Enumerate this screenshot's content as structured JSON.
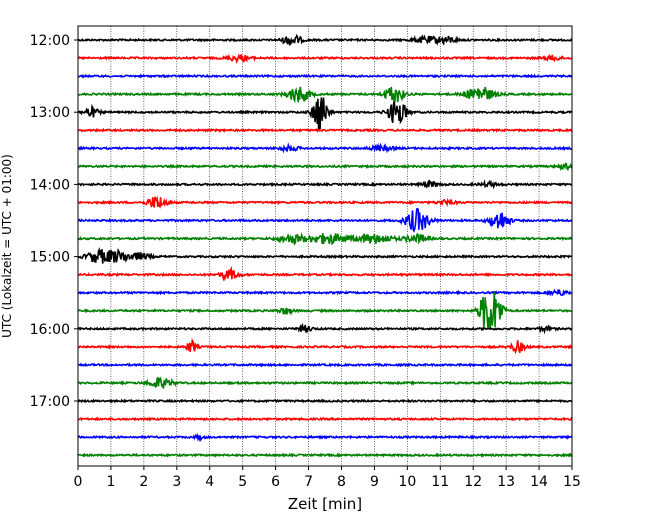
{
  "chart_data": {
    "type": "line",
    "title": "",
    "xlabel": "Zeit  [min]",
    "ylabel": "UTC (Lokalzeit = UTC + 01:00)",
    "xlim": [
      0,
      15
    ],
    "x_ticks": [
      0,
      1,
      2,
      3,
      4,
      5,
      6,
      7,
      8,
      9,
      10,
      11,
      12,
      13,
      14,
      15
    ],
    "y_ticks": [
      "12:00",
      "13:00",
      "14:00",
      "15:00",
      "16:00",
      "17:00"
    ],
    "grid": "vertical dotted",
    "colors": [
      "#000000",
      "#ff0000",
      "#0000ff",
      "#008000"
    ],
    "traces_per_hour": 4,
    "minutes_per_trace": 15,
    "traces": [
      {
        "start": "12:00",
        "color": "#000000",
        "events": [
          {
            "t": 6.5,
            "amp": 0.8,
            "dur": 0.4
          },
          {
            "t": 10.6,
            "amp": 0.5,
            "dur": 0.6
          },
          {
            "t": 11.2,
            "amp": 0.5,
            "dur": 0.4
          }
        ]
      },
      {
        "start": "12:15",
        "color": "#ff0000",
        "events": [
          {
            "t": 4.9,
            "amp": 0.5,
            "dur": 0.5
          },
          {
            "t": 14.4,
            "amp": 0.4,
            "dur": 0.4
          }
        ]
      },
      {
        "start": "12:30",
        "color": "#0000ff",
        "events": []
      },
      {
        "start": "12:45",
        "color": "#008000",
        "events": [
          {
            "t": 6.7,
            "amp": 1.2,
            "dur": 0.5
          },
          {
            "t": 9.6,
            "amp": 1.4,
            "dur": 0.4
          },
          {
            "t": 12.2,
            "amp": 1.2,
            "dur": 0.6
          }
        ]
      },
      {
        "start": "13:00",
        "color": "#000000",
        "events": [
          {
            "t": 0.4,
            "amp": 0.8,
            "dur": 0.3
          },
          {
            "t": 7.35,
            "amp": 3.2,
            "dur": 0.3
          },
          {
            "t": 9.7,
            "amp": 2.0,
            "dur": 0.4
          }
        ]
      },
      {
        "start": "13:15",
        "color": "#ff0000",
        "events": []
      },
      {
        "start": "13:30",
        "color": "#0000ff",
        "events": [
          {
            "t": 6.4,
            "amp": 0.4,
            "dur": 0.4
          },
          {
            "t": 9.2,
            "amp": 0.4,
            "dur": 0.5
          }
        ]
      },
      {
        "start": "13:45",
        "color": "#008000",
        "events": [
          {
            "t": 14.8,
            "amp": 0.4,
            "dur": 0.3
          }
        ]
      },
      {
        "start": "14:00",
        "color": "#000000",
        "events": [
          {
            "t": 10.7,
            "amp": 0.4,
            "dur": 0.4
          },
          {
            "t": 12.5,
            "amp": 0.3,
            "dur": 0.4
          }
        ]
      },
      {
        "start": "14:15",
        "color": "#ff0000",
        "events": [
          {
            "t": 2.4,
            "amp": 1.0,
            "dur": 0.4
          },
          {
            "t": 11.2,
            "amp": 0.3,
            "dur": 0.4
          }
        ]
      },
      {
        "start": "14:30",
        "color": "#0000ff",
        "events": [
          {
            "t": 10.3,
            "amp": 1.8,
            "dur": 0.5
          },
          {
            "t": 12.8,
            "amp": 1.5,
            "dur": 0.4
          }
        ]
      },
      {
        "start": "14:45",
        "color": "#008000",
        "events": [
          {
            "t": 6.5,
            "amp": 0.7,
            "dur": 0.6
          },
          {
            "t": 7.6,
            "amp": 0.8,
            "dur": 0.8
          },
          {
            "t": 9.0,
            "amp": 0.7,
            "dur": 0.8
          },
          {
            "t": 10.3,
            "amp": 0.6,
            "dur": 0.5
          }
        ]
      },
      {
        "start": "15:00",
        "color": "#000000",
        "events": [
          {
            "t": 0.6,
            "amp": 0.9,
            "dur": 0.5
          },
          {
            "t": 1.2,
            "amp": 0.9,
            "dur": 0.6
          },
          {
            "t": 1.9,
            "amp": 0.5,
            "dur": 0.4
          }
        ]
      },
      {
        "start": "15:15",
        "color": "#ff0000",
        "events": [
          {
            "t": 4.6,
            "amp": 0.8,
            "dur": 0.4
          }
        ]
      },
      {
        "start": "15:30",
        "color": "#0000ff",
        "events": [
          {
            "t": 14.6,
            "amp": 0.4,
            "dur": 0.4
          }
        ]
      },
      {
        "start": "15:45",
        "color": "#008000",
        "events": [
          {
            "t": 6.3,
            "amp": 0.5,
            "dur": 0.3
          },
          {
            "t": 12.4,
            "amp": 3.2,
            "dur": 0.3
          },
          {
            "t": 12.7,
            "amp": 2.6,
            "dur": 0.3
          }
        ]
      },
      {
        "start": "16:00",
        "color": "#000000",
        "events": [
          {
            "t": 6.9,
            "amp": 0.5,
            "dur": 0.3
          },
          {
            "t": 14.2,
            "amp": 0.3,
            "dur": 0.3
          }
        ]
      },
      {
        "start": "16:15",
        "color": "#ff0000",
        "events": [
          {
            "t": 3.45,
            "amp": 1.0,
            "dur": 0.2
          },
          {
            "t": 13.35,
            "amp": 0.9,
            "dur": 0.3
          }
        ]
      },
      {
        "start": "16:30",
        "color": "#0000ff",
        "events": []
      },
      {
        "start": "16:45",
        "color": "#008000",
        "events": [
          {
            "t": 2.5,
            "amp": 0.8,
            "dur": 0.5
          }
        ]
      },
      {
        "start": "17:00",
        "color": "#000000",
        "events": []
      },
      {
        "start": "17:15",
        "color": "#ff0000",
        "events": []
      },
      {
        "start": "17:30",
        "color": "#0000ff",
        "events": [
          {
            "t": 3.7,
            "amp": 0.3,
            "dur": 0.2
          }
        ]
      },
      {
        "start": "17:45",
        "color": "#008000",
        "events": []
      }
    ]
  }
}
